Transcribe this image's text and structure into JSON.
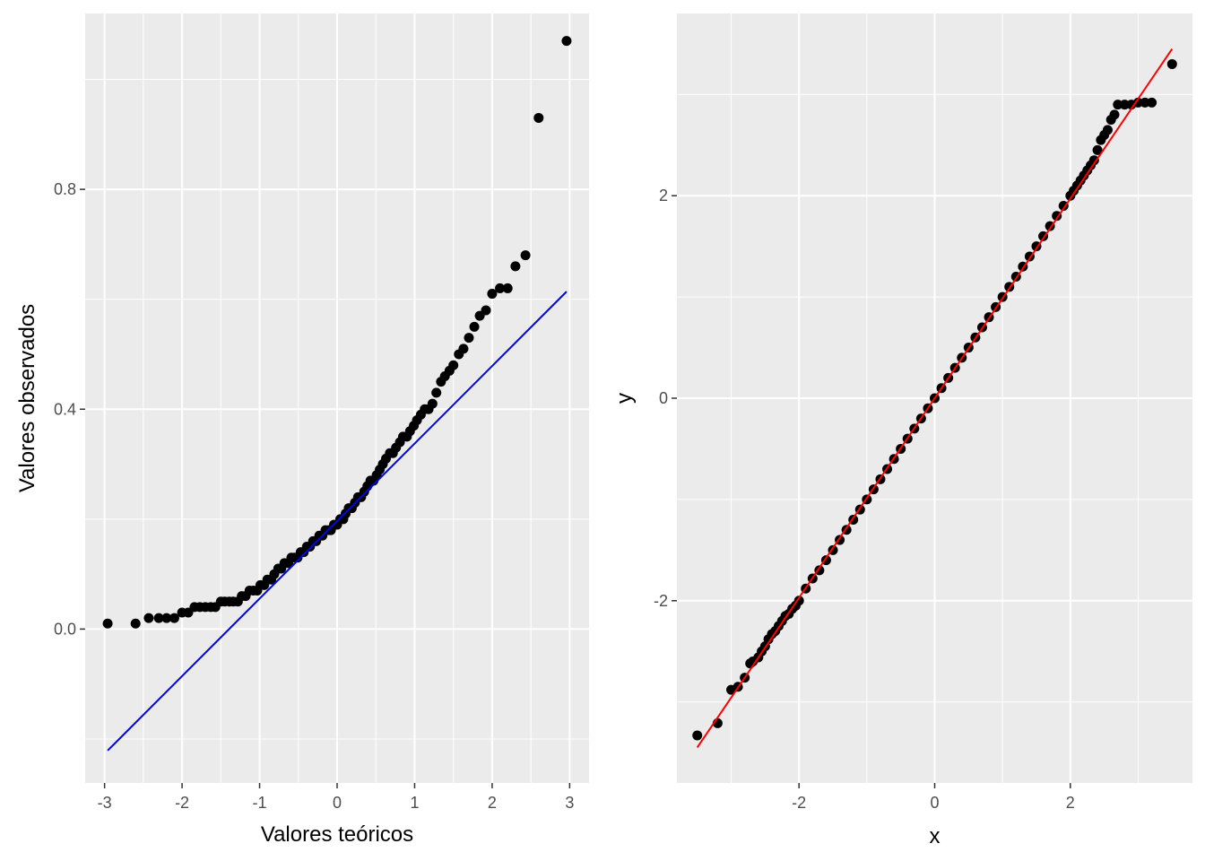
{
  "chart_data": [
    {
      "type": "scatter",
      "xlabel": "Valores teóricos",
      "ylabel": "Valores observados",
      "xlim": [
        -3.25,
        3.25
      ],
      "ylim": [
        -0.28,
        1.12
      ],
      "x_ticks": [
        -3,
        -2,
        -1,
        0,
        1,
        2,
        3
      ],
      "x_tick_labels": [
        "-3",
        "-2",
        "-1",
        "0",
        "1",
        "2",
        "3"
      ],
      "y_ticks": [
        0.0,
        0.4,
        0.8
      ],
      "y_tick_labels": [
        "0.0",
        "0.4",
        "0.8"
      ],
      "grid": true,
      "reference_line": {
        "x": [
          -2.96,
          2.96
        ],
        "y": [
          -0.221,
          0.614
        ],
        "color": "#0000ff"
      },
      "point_color": "#000000",
      "series": [
        {
          "x": [
            -2.96,
            -2.6,
            -2.43,
            -2.3,
            -2.2,
            -2.1,
            -2.0,
            -1.92,
            -1.84,
            -1.77,
            -1.7,
            -1.63,
            -1.57,
            -1.5,
            -1.45,
            -1.39,
            -1.34,
            -1.28,
            -1.23,
            -1.18,
            -1.13,
            -1.08,
            -1.03,
            -0.99,
            -0.94,
            -0.9,
            -0.85,
            -0.81,
            -0.76,
            -0.72,
            -0.68,
            -0.63,
            -0.59,
            -0.55,
            -0.51,
            -0.47,
            -0.43,
            -0.39,
            -0.35,
            -0.31,
            -0.27,
            -0.23,
            -0.19,
            -0.15,
            -0.11,
            -0.08,
            -0.04,
            0.0,
            0.04,
            0.08,
            0.11,
            0.15,
            0.19,
            0.23,
            0.27,
            0.31,
            0.35,
            0.39,
            0.43,
            0.47,
            0.51,
            0.55,
            0.59,
            0.63,
            0.68,
            0.72,
            0.76,
            0.81,
            0.85,
            0.9,
            0.94,
            0.99,
            1.03,
            1.08,
            1.13,
            1.18,
            1.23,
            1.28,
            1.34,
            1.39,
            1.45,
            1.5,
            1.57,
            1.63,
            1.7,
            1.77,
            1.84,
            1.92,
            2.0,
            2.1,
            2.2,
            2.3,
            2.43,
            2.6,
            2.96
          ],
          "y": [
            0.01,
            0.01,
            0.02,
            0.02,
            0.02,
            0.02,
            0.03,
            0.03,
            0.04,
            0.04,
            0.04,
            0.04,
            0.04,
            0.05,
            0.05,
            0.05,
            0.05,
            0.05,
            0.06,
            0.06,
            0.07,
            0.07,
            0.07,
            0.08,
            0.08,
            0.09,
            0.09,
            0.1,
            0.11,
            0.11,
            0.12,
            0.12,
            0.13,
            0.13,
            0.13,
            0.14,
            0.14,
            0.15,
            0.15,
            0.16,
            0.16,
            0.17,
            0.17,
            0.18,
            0.18,
            0.18,
            0.19,
            0.19,
            0.2,
            0.2,
            0.21,
            0.22,
            0.22,
            0.23,
            0.24,
            0.24,
            0.25,
            0.26,
            0.27,
            0.27,
            0.28,
            0.29,
            0.3,
            0.31,
            0.32,
            0.32,
            0.33,
            0.34,
            0.35,
            0.35,
            0.36,
            0.37,
            0.38,
            0.39,
            0.4,
            0.4,
            0.41,
            0.43,
            0.45,
            0.46,
            0.47,
            0.48,
            0.5,
            0.51,
            0.53,
            0.55,
            0.57,
            0.58,
            0.61,
            0.62,
            0.62,
            0.66,
            0.68,
            0.93,
            1.07
          ]
        }
      ]
    },
    {
      "type": "scatter",
      "xlabel": "x",
      "ylabel": "y",
      "xlim": [
        -3.8,
        3.8
      ],
      "ylim": [
        -3.8,
        3.8
      ],
      "x_ticks": [
        -2,
        0,
        2
      ],
      "x_tick_labels": [
        "-2",
        "0",
        "2"
      ],
      "y_ticks": [
        -2,
        0,
        2
      ],
      "y_tick_labels": [
        "-2",
        "0",
        "2"
      ],
      "grid": true,
      "reference_line": {
        "x": [
          -3.5,
          3.5
        ],
        "y": [
          -3.45,
          3.45
        ],
        "color": "#ff0000"
      },
      "point_color": "#000000",
      "series": [
        {
          "x": [
            -3.5,
            -3.2,
            -3.0,
            -2.9,
            -2.8,
            -2.72,
            -2.68,
            -2.6,
            -2.55,
            -2.5,
            -2.45,
            -2.4,
            -2.35,
            -2.3,
            -2.25,
            -2.2,
            -2.15,
            -2.1,
            -2.05,
            -2.0,
            -1.9,
            -1.8,
            -1.7,
            -1.6,
            -1.5,
            -1.4,
            -1.3,
            -1.2,
            -1.1,
            -1.0,
            -0.9,
            -0.8,
            -0.7,
            -0.6,
            -0.5,
            -0.4,
            -0.3,
            -0.2,
            -0.1,
            0.0,
            0.1,
            0.2,
            0.3,
            0.4,
            0.5,
            0.6,
            0.7,
            0.8,
            0.9,
            1.0,
            1.1,
            1.2,
            1.3,
            1.4,
            1.5,
            1.6,
            1.7,
            1.8,
            1.9,
            2.0,
            2.05,
            2.1,
            2.15,
            2.2,
            2.25,
            2.3,
            2.35,
            2.4,
            2.45,
            2.5,
            2.55,
            2.6,
            2.65,
            2.7,
            2.8,
            2.9,
            3.0,
            3.1,
            3.2,
            3.5
          ],
          "y": [
            -3.33,
            -3.21,
            -2.88,
            -2.85,
            -2.76,
            -2.62,
            -2.6,
            -2.56,
            -2.5,
            -2.45,
            -2.38,
            -2.33,
            -2.3,
            -2.25,
            -2.2,
            -2.15,
            -2.13,
            -2.08,
            -2.05,
            -2.0,
            -1.88,
            -1.78,
            -1.7,
            -1.6,
            -1.5,
            -1.4,
            -1.3,
            -1.2,
            -1.1,
            -1.0,
            -0.9,
            -0.8,
            -0.7,
            -0.6,
            -0.5,
            -0.4,
            -0.3,
            -0.2,
            -0.1,
            0.0,
            0.1,
            0.2,
            0.3,
            0.4,
            0.5,
            0.6,
            0.7,
            0.8,
            0.9,
            1.0,
            1.1,
            1.2,
            1.3,
            1.4,
            1.5,
            1.6,
            1.7,
            1.8,
            1.9,
            2.0,
            2.05,
            2.1,
            2.15,
            2.2,
            2.25,
            2.3,
            2.35,
            2.45,
            2.55,
            2.6,
            2.65,
            2.75,
            2.8,
            2.9,
            2.9,
            2.9,
            2.92,
            2.92,
            2.92,
            3.3
          ]
        }
      ]
    }
  ]
}
